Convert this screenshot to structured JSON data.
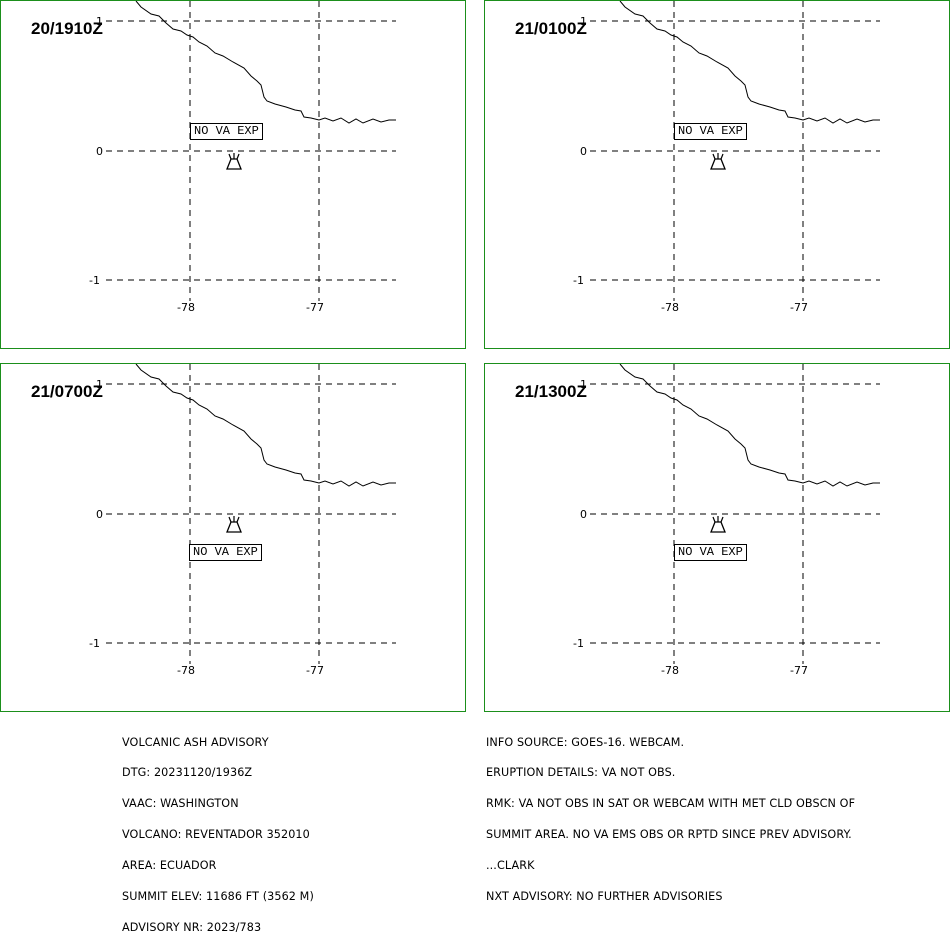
{
  "panels": [
    {
      "time": "20/1910Z",
      "label": "NO VA EXP",
      "label_pos": "above"
    },
    {
      "time": "21/0100Z",
      "label": "NO VA EXP",
      "label_pos": "above"
    },
    {
      "time": "21/0700Z",
      "label": "NO VA EXP",
      "label_pos": "below"
    },
    {
      "time": "21/1300Z",
      "label": "NO VA EXP",
      "label_pos": "below"
    }
  ],
  "axis": {
    "lat_ticks": [
      "1",
      "0",
      "-1"
    ],
    "lon_ticks": [
      "-78",
      "-77"
    ]
  },
  "advisory_left": [
    "VOLCANIC ASH ADVISORY",
    "DTG: 20231120/1936Z",
    "VAAC: WASHINGTON",
    "VOLCANO: REVENTADOR 352010",
    "AREA: ECUADOR",
    "SUMMIT ELEV: 11686 FT (3562 M)",
    "ADVISORY NR: 2023/783"
  ],
  "advisory_right": [
    "INFO SOURCE: GOES-16. WEBCAM.",
    "ERUPTION DETAILS: VA NOT OBS.",
    "RMK: VA NOT OBS IN SAT OR WEBCAM WITH MET CLD OBSCN OF",
    "SUMMIT AREA. NO VA EMS OBS OR RPTD SINCE PREV ADVISORY.",
    "...CLARK",
    "NXT ADVISORY: NO FURTHER ADVISORIES"
  ],
  "colors": {
    "panel_border": "#1b8f1b"
  },
  "icons": {
    "volcano": "volcano-icon"
  }
}
